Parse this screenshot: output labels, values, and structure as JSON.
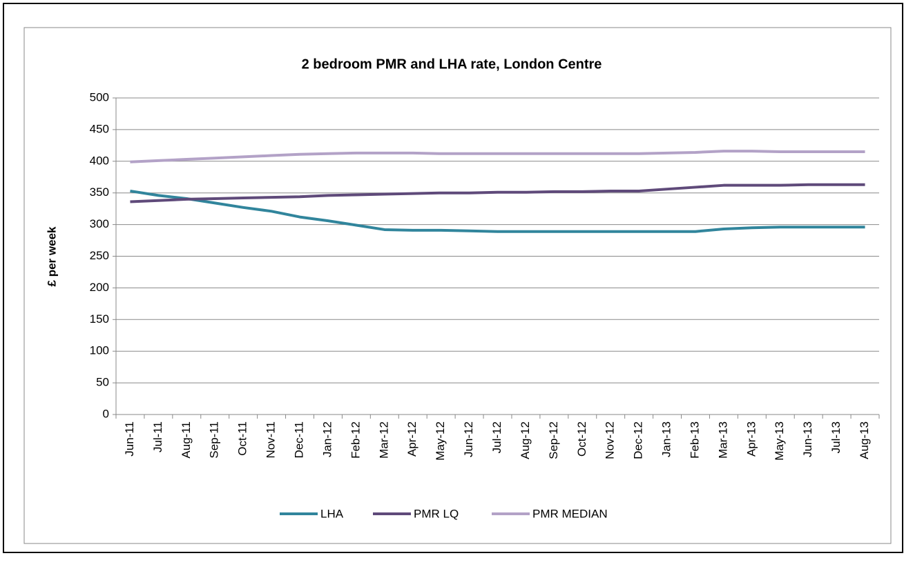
{
  "chart_data": {
    "type": "line",
    "title": "2 bedroom PMR and LHA rate, London Centre",
    "y_label": "£ per week",
    "categories": [
      "Jun-11",
      "Jul-11",
      "Aug-11",
      "Sep-11",
      "Oct-11",
      "Nov-11",
      "Dec-11",
      "Jan-12",
      "Feb-12",
      "Mar-12",
      "Apr-12",
      "May-12",
      "Jun-12",
      "Jul-12",
      "Aug-12",
      "Sep-12",
      "Oct-12",
      "Nov-12",
      "Dec-12",
      "Jan-13",
      "Feb-13",
      "Mar-13",
      "Apr-13",
      "May-13",
      "Jun-13",
      "Jul-13",
      "Aug-13"
    ],
    "series": [
      {
        "name": "LHA",
        "color": "#31859c",
        "values": [
          353,
          346,
          341,
          334,
          327,
          321,
          312,
          306,
          299,
          292,
          291,
          291,
          290,
          289,
          289,
          289,
          289,
          289,
          289,
          289,
          289,
          293,
          295,
          296,
          296,
          296,
          296
        ]
      },
      {
        "name": "PMR LQ",
        "color": "#5f4a7a",
        "values": [
          336,
          338,
          340,
          341,
          342,
          343,
          344,
          346,
          347,
          348,
          349,
          350,
          350,
          351,
          351,
          352,
          352,
          353,
          353,
          356,
          359,
          362,
          362,
          362,
          363,
          363,
          363
        ]
      },
      {
        "name": "PMR MEDIAN",
        "color": "#b3a2c7",
        "values": [
          399,
          401,
          403,
          405,
          407,
          409,
          411,
          412,
          413,
          413,
          413,
          412,
          412,
          412,
          412,
          412,
          412,
          412,
          412,
          413,
          414,
          416,
          416,
          415,
          415,
          415,
          415
        ]
      }
    ],
    "ylim": [
      0,
      500
    ],
    "yticks": [
      0,
      50,
      100,
      150,
      200,
      250,
      300,
      350,
      400,
      450,
      500
    ],
    "grid": true,
    "legend": "bottom"
  }
}
